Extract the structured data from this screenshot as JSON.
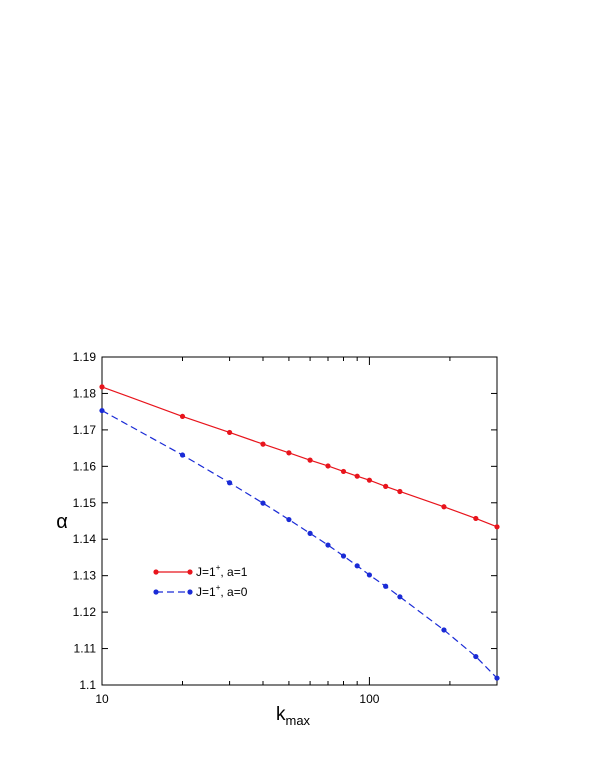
{
  "chart_data": {
    "type": "line",
    "title": "",
    "xlabel": "k",
    "xlabel_sub": "max",
    "ylabel": "α",
    "xscale": "log",
    "xlim": [
      10,
      300
    ],
    "ylim": [
      1.1,
      1.19
    ],
    "xticks_major": [
      10,
      100
    ],
    "xtick_labels": [
      "10",
      "100"
    ],
    "xticks_minor": [
      20,
      30,
      40,
      50,
      60,
      70,
      80,
      90,
      200,
      300
    ],
    "yticks": [
      1.1,
      1.11,
      1.12,
      1.13,
      1.14,
      1.15,
      1.16,
      1.17,
      1.18,
      1.19
    ],
    "ytick_labels": [
      "1.1",
      "1.11",
      "1.12",
      "1.13",
      "1.14",
      "1.15",
      "1.16",
      "1.17",
      "1.18",
      "1.19"
    ],
    "grid": false,
    "legend_position": "center-left",
    "series": [
      {
        "name_main": "J=1",
        "name_sup": "+",
        "name_tail": ", a=1",
        "color": "#e8141c",
        "dash": "solid",
        "x": [
          10,
          20,
          30,
          40,
          50,
          60,
          70,
          80,
          90,
          100,
          115,
          130,
          190,
          250,
          300
        ],
        "y": [
          1.1818,
          1.1737,
          1.1693,
          1.1661,
          1.1637,
          1.1617,
          1.1601,
          1.1586,
          1.1573,
          1.1562,
          1.1545,
          1.1531,
          1.1489,
          1.1457,
          1.1434
        ]
      },
      {
        "name_main": "J=1",
        "name_sup": "+",
        "name_tail": ", a=0",
        "color": "#1a2bd6",
        "dash": "dashed",
        "x": [
          10,
          20,
          30,
          40,
          50,
          60,
          70,
          80,
          90,
          100,
          115,
          130,
          190,
          250,
          300
        ],
        "y": [
          1.1753,
          1.1631,
          1.1555,
          1.1499,
          1.1454,
          1.1416,
          1.1384,
          1.1354,
          1.1327,
          1.1302,
          1.1271,
          1.1242,
          1.1151,
          1.1078,
          1.1019
        ]
      }
    ]
  }
}
